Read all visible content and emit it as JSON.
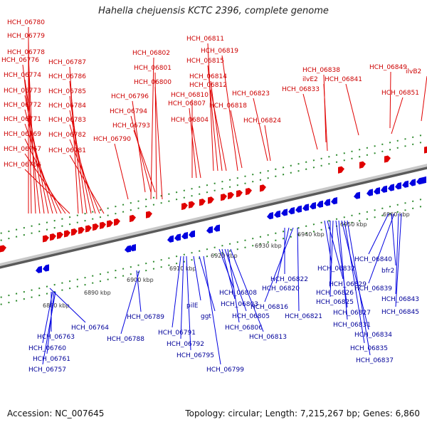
{
  "title": "Hahella chejuensis KCTC 2396, complete genome",
  "footer": {
    "accession": "Accession: NC_007645",
    "summary": "Topology: circular; Length: 7,215,267 bp; Genes: 6,860"
  },
  "colors": {
    "top_strand_genes": "#e00000",
    "bottom_strand_genes": "#0000e0",
    "top_labels": "#cc0000",
    "bottom_labels": "#000099",
    "backbone": "#8c8c8c",
    "tick_marks": "#2d8a2d"
  },
  "scale_labels": [
    "6880 kbp",
    "6890 kbp",
    "6900 kbp",
    "6910 kbp",
    "6920 kbp",
    "6930 kbp",
    "6940 kbp",
    "6950 kbp",
    "6960 kbp"
  ],
  "top_gene_labels": [
    "HCH_06780",
    "HCH_06779",
    "HCH_06778",
    "HCH_06776",
    "HCH_06774",
    "HCH_06773",
    "HCH_06772",
    "HCH_06771",
    "HCH_06769",
    "HCH_06767",
    "HCH_06766",
    "HCH_06787",
    "HCH_06786",
    "HCH_06785",
    "HCH_06784",
    "HCH_06783",
    "HCH_06782",
    "HCH_06781",
    "HCH_06802",
    "HCH_06801",
    "HCH_06800",
    "HCH_06796",
    "HCH_06794",
    "HCH_06793",
    "HCH_06790",
    "HCH_06811",
    "HCH_06815",
    "HCH_06814",
    "HCH_06812",
    "HCH_06810",
    "HCH_06807",
    "HCH_06804",
    "HCH_06819",
    "HCH_06818",
    "HCH_06823",
    "HCH_06824",
    "HCH_06838",
    "ilvE2",
    "HCH_06833",
    "HCH_06841",
    "HCH_06849",
    "HCH_06851",
    "ilvB2"
  ],
  "bottom_gene_labels": [
    "HCH_06764",
    "HCH_06763",
    "HCH_06760",
    "HCH_06761",
    "HCH_06757",
    "HCH_06789",
    "HCH_06788",
    "HCH_06791",
    "HCH_06792",
    "HCH_06795",
    "pilE",
    "ggt",
    "HCH_06799",
    "HCH_06808",
    "HCH_06803",
    "HCH_06805",
    "HCH_06806",
    "HCH_06813",
    "HCH_06822",
    "HCH_06820",
    "HCH_06816",
    "HCH_06821",
    "HCH_06832",
    "HCH_06829",
    "HCH_06826",
    "HCH_06825",
    "HCH_06827",
    "HCH_06831",
    "HCH_06834",
    "HCH_06835",
    "HCH_06837",
    "HCH_06840",
    "bfr2",
    "HCH_06839",
    "HCH_06843",
    "HCH_06845"
  ]
}
